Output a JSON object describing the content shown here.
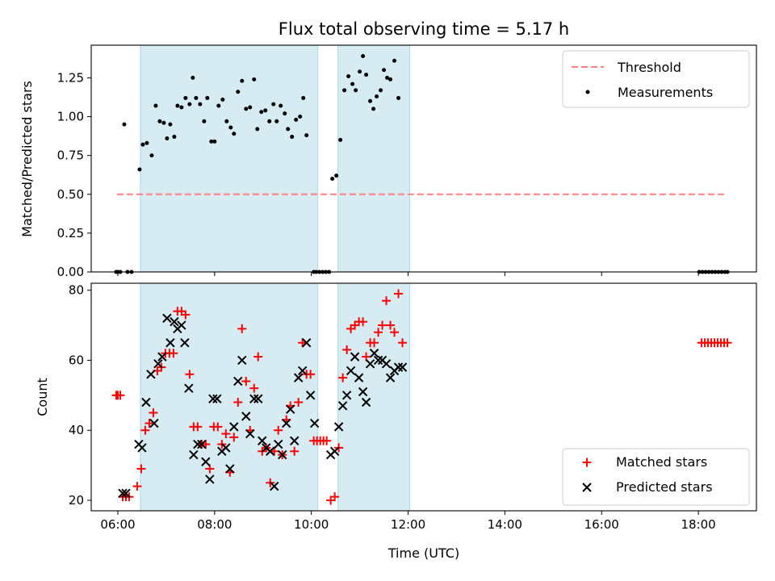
{
  "colors": {
    "band": "#add8e6",
    "threshold": "#ff7f7f",
    "matched": "#ff0000",
    "predicted": "#000000"
  },
  "chart_data": [
    {
      "type": "scatter",
      "title": "Flux total observing time = 5.17 h",
      "xlabel": "",
      "ylabel": "Matched/Predicted stars",
      "xlim": [
        "05:27",
        "19:12"
      ],
      "ylim": [
        0,
        1.46
      ],
      "x_ticks": [
        "06:00",
        "08:00",
        "10:00",
        "12:00",
        "14:00",
        "16:00",
        "18:00"
      ],
      "x_ticklabels_visible": false,
      "y_ticks": [
        0,
        0.25,
        0.5,
        0.75,
        1.0,
        1.25
      ],
      "y_ticklabels": [
        "0.00",
        "0.25",
        "0.50",
        "0.75",
        "1.00",
        "1.25"
      ],
      "shaded_intervals": [
        [
          "06:28",
          "10:08"
        ],
        [
          "10:33",
          "12:02"
        ]
      ],
      "threshold": {
        "name": "Threshold",
        "value": 0.5,
        "x_range": [
          "05:59",
          "18:36"
        ]
      },
      "legend": {
        "placement": "top-right",
        "entries": [
          "Threshold",
          "Measurements"
        ]
      },
      "series": [
        {
          "name": "Measurements",
          "points": [
            [
              "05:58",
              0
            ],
            [
              "06:00",
              0
            ],
            [
              "06:03",
              0
            ],
            [
              "06:08",
              0.95
            ],
            [
              "06:12",
              0
            ],
            [
              "06:17",
              0
            ],
            [
              "06:27",
              0.66
            ],
            [
              "06:31",
              0.82
            ],
            [
              "06:36",
              0.83
            ],
            [
              "06:42",
              0.75
            ],
            [
              "06:47",
              1.07
            ],
            [
              "06:52",
              0.97
            ],
            [
              "06:57",
              0.96
            ],
            [
              "07:01",
              0.86
            ],
            [
              "07:05",
              0.95
            ],
            [
              "07:10",
              0.87
            ],
            [
              "07:14",
              1.07
            ],
            [
              "07:19",
              1.06
            ],
            [
              "07:24",
              1.12
            ],
            [
              "07:29",
              1.08
            ],
            [
              "07:33",
              1.25
            ],
            [
              "07:37",
              1.12
            ],
            [
              "07:42",
              1.08
            ],
            [
              "07:47",
              0.97
            ],
            [
              "07:51",
              1.12
            ],
            [
              "07:56",
              0.84
            ],
            [
              "08:00",
              0.84
            ],
            [
              "08:05",
              1.07
            ],
            [
              "08:10",
              1.11
            ],
            [
              "08:15",
              0.97
            ],
            [
              "08:20",
              0.93
            ],
            [
              "08:24",
              0.89
            ],
            [
              "08:29",
              1.16
            ],
            [
              "08:34",
              1.23
            ],
            [
              "08:39",
              1.05
            ],
            [
              "08:44",
              1.06
            ],
            [
              "08:49",
              1.24
            ],
            [
              "08:53",
              0.92
            ],
            [
              "08:58",
              1.03
            ],
            [
              "09:03",
              1.04
            ],
            [
              "09:08",
              0.97
            ],
            [
              "09:13",
              1.08
            ],
            [
              "09:17",
              0.97
            ],
            [
              "09:22",
              1.07
            ],
            [
              "09:27",
              1.02
            ],
            [
              "09:31",
              0.92
            ],
            [
              "09:36",
              0.87
            ],
            [
              "09:41",
              0.98
            ],
            [
              "09:46",
              1.0
            ],
            [
              "09:50",
              1.12
            ],
            [
              "09:54",
              0.88
            ],
            [
              "10:03",
              0
            ],
            [
              "10:06",
              0
            ],
            [
              "10:10",
              0
            ],
            [
              "10:14",
              0
            ],
            [
              "10:18",
              0
            ],
            [
              "10:22",
              0
            ],
            [
              "10:26",
              0.6
            ],
            [
              "10:31",
              0.62
            ],
            [
              "10:36",
              0.85
            ],
            [
              "10:41",
              1.17
            ],
            [
              "10:46",
              1.26
            ],
            [
              "10:51",
              1.21
            ],
            [
              "10:55",
              1.17
            ],
            [
              "11:00",
              1.29
            ],
            [
              "11:04",
              1.39
            ],
            [
              "11:08",
              1.27
            ],
            [
              "11:13",
              1.1
            ],
            [
              "11:17",
              1.05
            ],
            [
              "11:21",
              1.13
            ],
            [
              "11:26",
              1.17
            ],
            [
              "11:30",
              1.3
            ],
            [
              "11:34",
              1.25
            ],
            [
              "11:38",
              1.24
            ],
            [
              "11:43",
              1.36
            ],
            [
              "11:48",
              1.12
            ],
            [
              "18:01",
              0
            ],
            [
              "18:05",
              0
            ],
            [
              "18:09",
              0
            ],
            [
              "18:13",
              0
            ],
            [
              "18:17",
              0
            ],
            [
              "18:21",
              0
            ],
            [
              "18:25",
              0
            ],
            [
              "18:29",
              0
            ],
            [
              "18:33",
              0
            ],
            [
              "18:36",
              0
            ]
          ]
        }
      ]
    },
    {
      "type": "scatter",
      "title": "",
      "xlabel": "Time (UTC)",
      "ylabel": "Count",
      "xlim": [
        "05:27",
        "19:12"
      ],
      "ylim": [
        17,
        82
      ],
      "x_ticks": [
        "06:00",
        "08:00",
        "10:00",
        "12:00",
        "14:00",
        "16:00",
        "18:00"
      ],
      "y_ticks": [
        20,
        40,
        60,
        80
      ],
      "shaded_intervals": [
        [
          "06:28",
          "10:08"
        ],
        [
          "10:33",
          "12:02"
        ]
      ],
      "legend": {
        "placement": "bottom-right",
        "entries": [
          "Matched stars",
          "Predicted stars"
        ]
      },
      "series": [
        {
          "name": "Matched stars",
          "marker": "+",
          "points": [
            [
              "05:58",
              50
            ],
            [
              "06:00",
              50
            ],
            [
              "06:03",
              50
            ],
            [
              "06:06",
              21
            ],
            [
              "06:10",
              21
            ],
            [
              "06:14",
              21
            ],
            [
              "06:24",
              24
            ],
            [
              "06:29",
              29
            ],
            [
              "06:34",
              40
            ],
            [
              "06:39",
              42
            ],
            [
              "06:44",
              45
            ],
            [
              "06:49",
              57
            ],
            [
              "06:54",
              58
            ],
            [
              "06:59",
              62
            ],
            [
              "07:04",
              62
            ],
            [
              "07:09",
              62
            ],
            [
              "07:14",
              74
            ],
            [
              "07:19",
              74
            ],
            [
              "07:24",
              73
            ],
            [
              "07:29",
              56
            ],
            [
              "07:34",
              41
            ],
            [
              "07:39",
              41
            ],
            [
              "07:44",
              36
            ],
            [
              "07:49",
              36
            ],
            [
              "07:54",
              29
            ],
            [
              "07:59",
              41
            ],
            [
              "08:04",
              41
            ],
            [
              "08:09",
              36
            ],
            [
              "08:14",
              39
            ],
            [
              "08:19",
              28
            ],
            [
              "08:24",
              38
            ],
            [
              "08:29",
              48
            ],
            [
              "08:34",
              69
            ],
            [
              "08:39",
              54
            ],
            [
              "08:44",
              40
            ],
            [
              "08:49",
              52
            ],
            [
              "08:54",
              61
            ],
            [
              "08:59",
              34
            ],
            [
              "09:04",
              35
            ],
            [
              "09:09",
              25
            ],
            [
              "09:14",
              34
            ],
            [
              "09:19",
              40
            ],
            [
              "09:24",
              33
            ],
            [
              "09:29",
              43
            ],
            [
              "09:34",
              47
            ],
            [
              "09:39",
              34
            ],
            [
              "09:44",
              48
            ],
            [
              "09:49",
              65
            ],
            [
              "09:54",
              56
            ],
            [
              "09:59",
              56
            ],
            [
              "10:03",
              37
            ],
            [
              "10:07",
              37
            ],
            [
              "10:11",
              37
            ],
            [
              "10:15",
              37
            ],
            [
              "10:19",
              37
            ],
            [
              "10:24",
              20
            ],
            [
              "10:29",
              21
            ],
            [
              "10:34",
              35
            ],
            [
              "10:39",
              55
            ],
            [
              "10:44",
              63
            ],
            [
              "10:49",
              69
            ],
            [
              "10:54",
              70
            ],
            [
              "10:59",
              71
            ],
            [
              "11:04",
              71
            ],
            [
              "11:08",
              61
            ],
            [
              "11:13",
              65
            ],
            [
              "11:18",
              65
            ],
            [
              "11:23",
              68
            ],
            [
              "11:28",
              70
            ],
            [
              "11:33",
              77
            ],
            [
              "11:38",
              70
            ],
            [
              "11:43",
              68
            ],
            [
              "11:48",
              79
            ],
            [
              "11:53",
              65
            ],
            [
              "18:04",
              65
            ],
            [
              "18:08",
              65
            ],
            [
              "18:12",
              65
            ],
            [
              "18:16",
              65
            ],
            [
              "18:20",
              65
            ],
            [
              "18:24",
              65
            ],
            [
              "18:28",
              65
            ],
            [
              "18:32",
              65
            ],
            [
              "18:36",
              65
            ]
          ]
        },
        {
          "name": "Predicted stars",
          "marker": "x",
          "points": [
            [
              "06:06",
              22
            ],
            [
              "06:10",
              22
            ],
            [
              "06:26",
              36
            ],
            [
              "06:30",
              35
            ],
            [
              "06:35",
              48
            ],
            [
              "06:41",
              56
            ],
            [
              "06:45",
              42
            ],
            [
              "06:50",
              59
            ],
            [
              "06:55",
              61
            ],
            [
              "07:01",
              72
            ],
            [
              "07:05",
              65
            ],
            [
              "07:10",
              71
            ],
            [
              "07:14",
              69
            ],
            [
              "07:19",
              70
            ],
            [
              "07:23",
              65
            ],
            [
              "07:28",
              52
            ],
            [
              "07:34",
              33
            ],
            [
              "07:39",
              36
            ],
            [
              "07:44",
              36
            ],
            [
              "07:49",
              31
            ],
            [
              "07:54",
              26
            ],
            [
              "07:58",
              49
            ],
            [
              "08:03",
              49
            ],
            [
              "08:09",
              34
            ],
            [
              "08:14",
              35
            ],
            [
              "08:19",
              29
            ],
            [
              "08:24",
              41
            ],
            [
              "08:29",
              54
            ],
            [
              "08:34",
              60
            ],
            [
              "08:39",
              44
            ],
            [
              "08:44",
              39
            ],
            [
              "08:49",
              49
            ],
            [
              "08:54",
              49
            ],
            [
              "08:59",
              37
            ],
            [
              "09:04",
              35
            ],
            [
              "09:09",
              34
            ],
            [
              "09:14",
              24
            ],
            [
              "09:19",
              36
            ],
            [
              "09:24",
              33
            ],
            [
              "09:29",
              42
            ],
            [
              "09:34",
              46
            ],
            [
              "09:39",
              37
            ],
            [
              "09:44",
              55
            ],
            [
              "09:49",
              57
            ],
            [
              "09:54",
              65
            ],
            [
              "09:59",
              50
            ],
            [
              "10:04",
              42
            ],
            [
              "10:24",
              33
            ],
            [
              "10:29",
              34
            ],
            [
              "10:34",
              41
            ],
            [
              "10:39",
              47
            ],
            [
              "10:44",
              50
            ],
            [
              "10:49",
              57
            ],
            [
              "10:54",
              61
            ],
            [
              "10:59",
              55
            ],
            [
              "11:04",
              51
            ],
            [
              "11:08",
              48
            ],
            [
              "11:13",
              59
            ],
            [
              "11:18",
              62
            ],
            [
              "11:23",
              60
            ],
            [
              "11:28",
              60
            ],
            [
              "11:33",
              59
            ],
            [
              "11:38",
              55
            ],
            [
              "11:43",
              57
            ],
            [
              "11:48",
              58
            ],
            [
              "11:53",
              58
            ]
          ]
        }
      ]
    }
  ]
}
